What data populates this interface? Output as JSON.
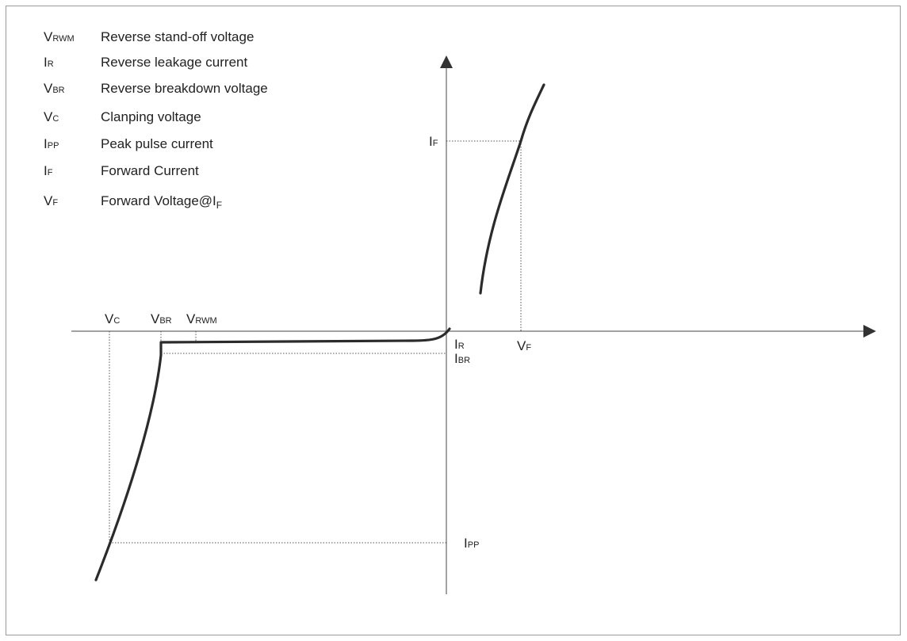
{
  "legend": [
    {
      "sym": "V",
      "sub": "RWM",
      "desc": "Reverse stand-off voltage"
    },
    {
      "sym": "I",
      "sub": "R",
      "desc": "Reverse leakage current"
    },
    {
      "sym": "V",
      "sub": "BR",
      "desc": "Reverse breakdown voltage"
    },
    {
      "sym": "V",
      "sub": "C",
      "desc": "Clanping voltage"
    },
    {
      "sym": "I",
      "sub": "PP",
      "desc": "Peak pulse current"
    },
    {
      "sym": "I",
      "sub": "F",
      "desc": "Forward Current"
    },
    {
      "sym": "V",
      "sub": "F",
      "desc": "Forward Voltage@I",
      "desc_sub": "F"
    }
  ],
  "labels": {
    "vc": {
      "sym": "V",
      "sub": "C"
    },
    "vbr": {
      "sym": "V",
      "sub": "BR"
    },
    "vrwm": {
      "sym": "V",
      "sub": "RWM"
    },
    "ir": {
      "sym": "I",
      "sub": "R"
    },
    "ibr": {
      "sym": "I",
      "sub": "BR"
    },
    "vf": {
      "sym": "V",
      "sub": "F"
    },
    "if": {
      "sym": "I",
      "sub": "F"
    },
    "ipp": {
      "sym": "I",
      "sub": "PP"
    }
  }
}
